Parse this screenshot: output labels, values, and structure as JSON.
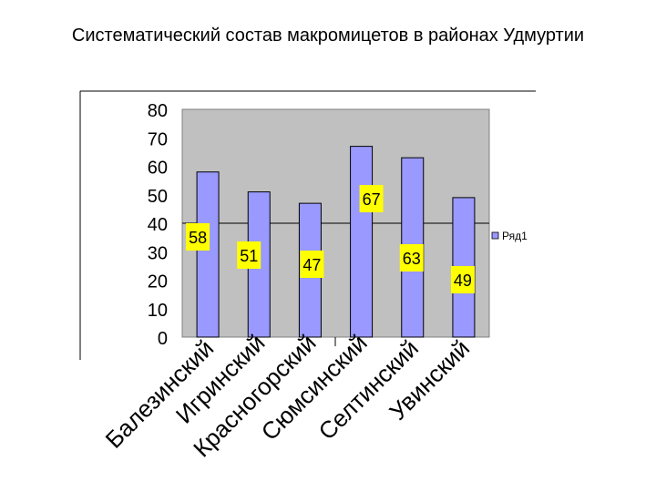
{
  "title": "Систематический состав макромицетов в районах Удмуртии",
  "chart_data": {
    "type": "bar",
    "title": "Систематический состав макромицетов в районах Удмуртии",
    "categories": [
      "Балезинский",
      "Игринский",
      "Красногорский",
      "Сюмсинский",
      "Селтинский",
      "Увинский"
    ],
    "series": [
      {
        "name": "Ряд1",
        "values": [
          58,
          51,
          47,
          67,
          63,
          49
        ]
      }
    ],
    "data_labels": [
      "58",
      "51",
      "47",
      "67",
      "63",
      "49"
    ],
    "y_ticks": [
      "0",
      "10",
      "20",
      "30",
      "40",
      "50",
      "60",
      "70",
      "80"
    ],
    "ylim": [
      0,
      80
    ],
    "legend_position": "right",
    "grid": "single gridline at 40",
    "colors": {
      "plot_background": "#c0c0c0",
      "bar_fill": "#9999ff",
      "bar_stroke": "#000000",
      "label_background": "#ffff00"
    }
  }
}
